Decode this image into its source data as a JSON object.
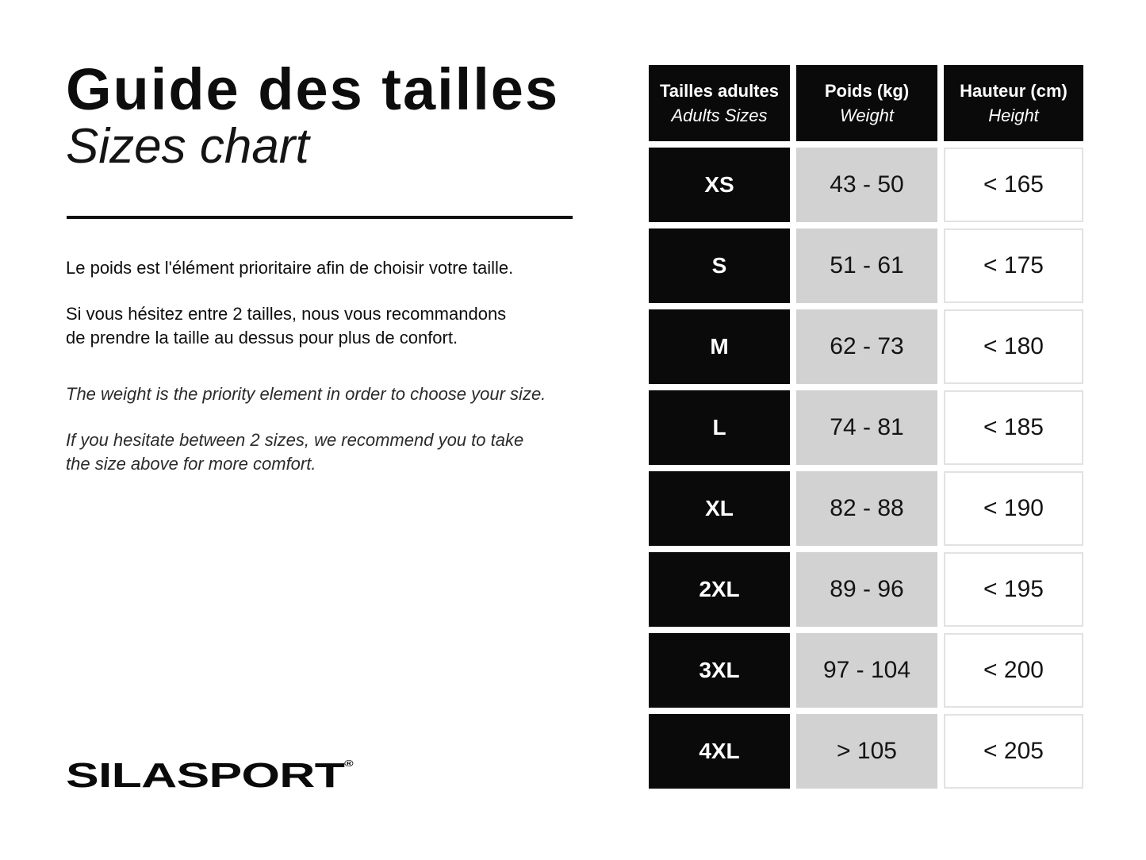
{
  "page": {
    "title_fr": "Guide des tailles",
    "title_en": "Sizes chart",
    "intro_fr_1": "Le poids est l'élément prioritaire afin de choisir votre taille.",
    "intro_fr_2": "Si vous hésitez entre 2 tailles, nous vous recommandons\nde prendre la taille au dessus pour plus de confort.",
    "intro_en_1": "The weight is the priority element in order to choose your size.",
    "intro_en_2": "If you hesitate between 2 sizes, we recommend you to take\nthe size above for more comfort.",
    "brand": {
      "name": "SILASPORT",
      "registered": "®"
    }
  },
  "table": {
    "headers": [
      {
        "fr": "Tailles adultes",
        "en": "Adults Sizes"
      },
      {
        "fr": "Poids (kg)",
        "en": "Weight"
      },
      {
        "fr": "Hauteur (cm)",
        "en": "Height"
      }
    ],
    "rows": [
      {
        "size": "XS",
        "weight": "43 - 50",
        "height": "< 165"
      },
      {
        "size": "S",
        "weight": "51 - 61",
        "height": "< 175"
      },
      {
        "size": "M",
        "weight": "62 - 73",
        "height": "< 180"
      },
      {
        "size": "L",
        "weight": "74 - 81",
        "height": "< 185"
      },
      {
        "size": "XL",
        "weight": "82 - 88",
        "height": "< 190"
      },
      {
        "size": "2XL",
        "weight": "89 - 96",
        "height": "< 195"
      },
      {
        "size": "3XL",
        "weight": "97 - 104",
        "height": "< 200"
      },
      {
        "size": "4XL",
        "weight": "> 105",
        "height": "< 205"
      }
    ]
  },
  "colors": {
    "cell_black": "#0a0a0a",
    "cell_gray": "#d2d2d2",
    "white_cell_border": "#e2e2e2",
    "text": "#101010"
  }
}
